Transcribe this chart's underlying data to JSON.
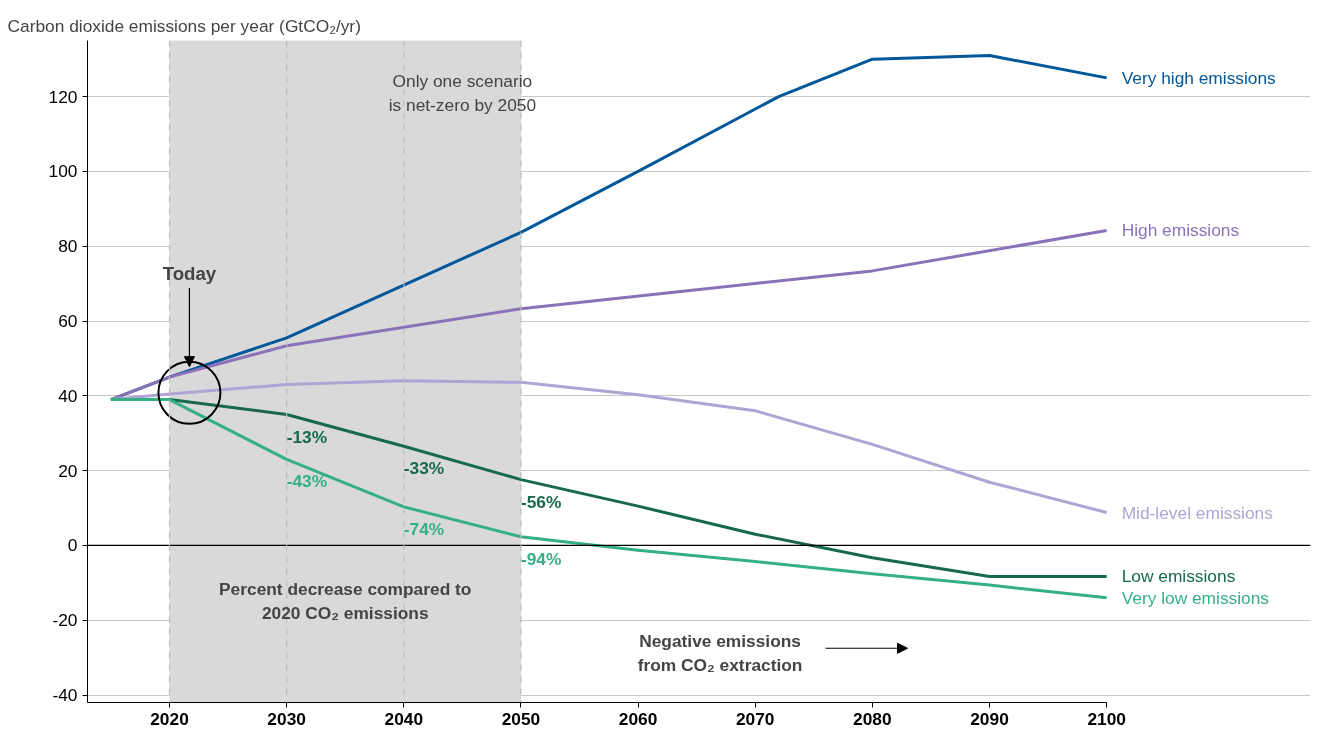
{
  "chart_data": {
    "type": "line",
    "ylabel": "Carbon dioxide emissions per year (GtCO₂/yr)",
    "xlim": [
      2013,
      2100
    ],
    "ylim": [
      -42,
      135
    ],
    "xticks": [
      2020,
      2030,
      2040,
      2050,
      2060,
      2070,
      2080,
      2090,
      2100
    ],
    "yticks": [
      -40,
      -20,
      0,
      20,
      40,
      60,
      80,
      100,
      120
    ],
    "grid": "y",
    "line_style": "solid",
    "marker": "none",
    "series": [
      {
        "name": "Very high emissions",
        "color": "#00579a",
        "x": [
          2015,
          2020,
          2030,
          2050,
          2060,
          2072,
          2080,
          2090,
          2100
        ],
        "values": [
          39,
          45,
          55.5,
          83.7,
          100,
          120,
          130,
          131,
          125
        ]
      },
      {
        "name": "High emissions",
        "color": "#8b72b8",
        "x": [
          2015,
          2020,
          2030,
          2050,
          2080,
          2100
        ],
        "values": [
          39,
          45,
          53.4,
          63.3,
          73.4,
          84.2
        ]
      },
      {
        "name": "Mid-level emissions",
        "color": "#b0a4d4",
        "x": [
          2015,
          2020,
          2030,
          2040,
          2050,
          2060,
          2070,
          2080,
          2090,
          2100
        ],
        "values": [
          39,
          40.5,
          43,
          44,
          43.6,
          40.3,
          36,
          27,
          16.9,
          8.8
        ]
      },
      {
        "name": "Low emissions",
        "color": "#17684f",
        "x": [
          2015,
          2020,
          2030,
          2040,
          2050,
          2060,
          2070,
          2080,
          2090,
          2100
        ],
        "values": [
          39,
          39,
          35,
          26.5,
          17.6,
          10.5,
          3,
          -3.3,
          -8.3,
          -8.3
        ]
      },
      {
        "name": "Very low emissions",
        "color": "#35b084",
        "x": [
          2015,
          2020,
          2030,
          2040,
          2050,
          2060,
          2070,
          2080,
          2090,
          2100
        ],
        "values": [
          39,
          39,
          23,
          10.3,
          2.3,
          -1.3,
          -4.3,
          -7.6,
          -10.6,
          -14
        ]
      }
    ],
    "bands": [
      {
        "axis": "x",
        "from": 2020,
        "to": 2050,
        "color": "#d9d9d9"
      }
    ],
    "ref_lines": [
      {
        "axis": "y",
        "value": 0,
        "color": "#000000",
        "line_style": "solid"
      },
      {
        "axis": "x",
        "value": 2020,
        "color": "#bdbdbd",
        "line_style": "dashed"
      },
      {
        "axis": "x",
        "value": 2030,
        "color": "#bdbdbd",
        "line_style": "dashed"
      },
      {
        "axis": "x",
        "value": 2040,
        "color": "#bdbdbd",
        "line_style": "dashed"
      },
      {
        "axis": "x",
        "value": 2050,
        "color": "#bdbdbd",
        "line_style": "dashed"
      }
    ],
    "annotations": [
      {
        "text": "Today",
        "x": 2021.7,
        "y": 46.8
      },
      "Only one scenario\nis net-zero by 2050",
      {
        "text": "-13%",
        "x": 2030,
        "y": 35
      },
      {
        "text": "-43%",
        "x": 2030,
        "y": 23
      },
      {
        "text": "-33%",
        "x": 2040,
        "y": 26.5
      },
      {
        "text": "-74%",
        "x": 2040,
        "y": 10.3
      },
      {
        "text": "-56%",
        "x": 2050,
        "y": 17.6
      },
      {
        "text": "-94%",
        "x": 2050,
        "y": 2.3
      },
      "Percent decrease compared to\n2020 CO₂ emissions",
      "Negative emissions\nfrom CO₂ extraction"
    ]
  }
}
